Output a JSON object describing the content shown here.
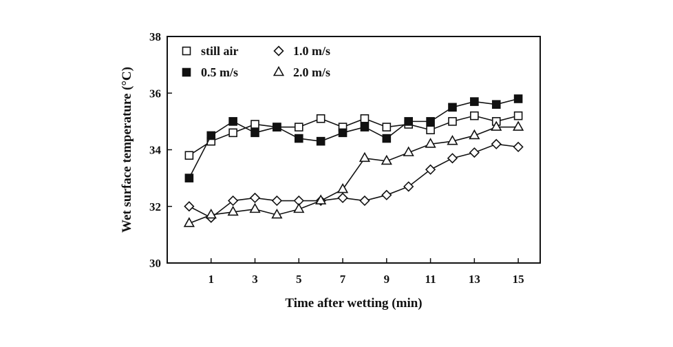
{
  "chart_data": {
    "type": "line",
    "title": "",
    "xlabel": "Time after wetting (min)",
    "ylabel": "Wet surface temperature (°C)",
    "xlim": [
      -1,
      16
    ],
    "ylim": [
      30,
      38
    ],
    "xticks": [
      1,
      3,
      5,
      7,
      9,
      11,
      13,
      15
    ],
    "yticks": [
      30,
      32,
      34,
      36,
      38
    ],
    "grid": false,
    "legend_position": "top-left",
    "x": [
      0,
      1,
      2,
      3,
      4,
      5,
      6,
      7,
      8,
      9,
      10,
      11,
      12,
      13,
      14,
      15
    ],
    "series": [
      {
        "name": "still air",
        "marker": "square-open",
        "values": [
          33.8,
          34.3,
          34.6,
          34.9,
          34.8,
          34.8,
          35.1,
          34.8,
          35.1,
          34.8,
          34.9,
          34.7,
          35.0,
          35.2,
          35.0,
          35.2
        ]
      },
      {
        "name": "0.5 m/s",
        "marker": "square-filled",
        "values": [
          33.0,
          34.5,
          35.0,
          34.6,
          34.8,
          34.4,
          34.3,
          34.6,
          34.8,
          34.4,
          35.0,
          35.0,
          35.5,
          35.7,
          35.6,
          35.8
        ]
      },
      {
        "name": "1.0 m/s",
        "marker": "diamond-open",
        "values": [
          32.0,
          31.6,
          32.2,
          32.3,
          32.2,
          32.2,
          32.2,
          32.3,
          32.2,
          32.4,
          32.7,
          33.3,
          33.7,
          33.9,
          34.2,
          34.1
        ]
      },
      {
        "name": "2.0 m/s",
        "marker": "triangle-open",
        "values": [
          31.4,
          31.7,
          31.8,
          31.9,
          31.7,
          31.9,
          32.2,
          32.6,
          33.7,
          33.6,
          33.9,
          34.2,
          34.3,
          34.5,
          34.8,
          34.8
        ]
      }
    ],
    "colors": {
      "line": "#111111",
      "marker_fill_open": "#ffffff",
      "marker_fill_filled": "#111111"
    }
  }
}
